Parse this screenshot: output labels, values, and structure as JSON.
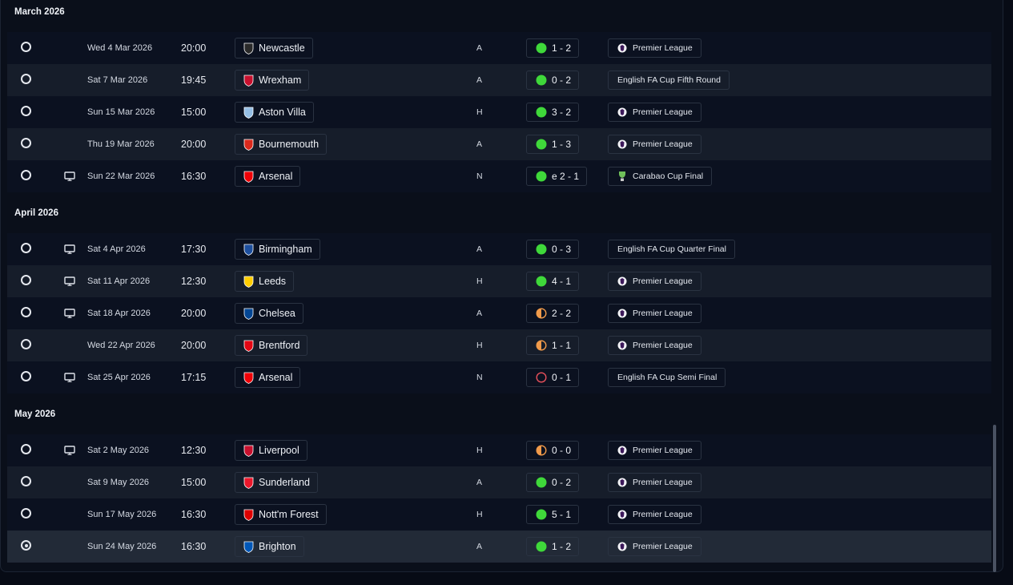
{
  "months": [
    {
      "label": "March 2026",
      "fixtures": [
        {
          "date": "Wed 4 Mar 2026",
          "time": "20:00",
          "opponent": "Newcastle",
          "crest": "newcastle-crest",
          "venue": "A",
          "result": "1 - 2",
          "outcome": "win",
          "competition": "Premier League",
          "comp_logo": "premier-league-logo",
          "tv": false,
          "selected": false
        },
        {
          "date": "Sat 7 Mar 2026",
          "time": "19:45",
          "opponent": "Wrexham",
          "crest": "wrexham-crest",
          "venue": "A",
          "result": "0 - 2",
          "outcome": "win",
          "competition": "English FA Cup Fifth Round",
          "comp_logo": "",
          "tv": false,
          "selected": false
        },
        {
          "date": "Sun 15 Mar 2026",
          "time": "15:00",
          "opponent": "Aston Villa",
          "crest": "aston-villa-crest",
          "venue": "H",
          "result": "3 - 2",
          "outcome": "win",
          "competition": "Premier League",
          "comp_logo": "premier-league-logo",
          "tv": false,
          "selected": false
        },
        {
          "date": "Thu 19 Mar 2026",
          "time": "20:00",
          "opponent": "Bournemouth",
          "crest": "bournemouth-crest",
          "venue": "A",
          "result": "1 - 3",
          "outcome": "win",
          "competition": "Premier League",
          "comp_logo": "premier-league-logo",
          "tv": false,
          "selected": false
        },
        {
          "date": "Sun 22 Mar 2026",
          "time": "16:30",
          "opponent": "Arsenal",
          "crest": "arsenal-crest",
          "venue": "N",
          "result": "e 2 - 1",
          "outcome": "win",
          "competition": "Carabao Cup Final",
          "comp_logo": "carabao-cup-logo",
          "tv": true,
          "selected": false
        }
      ]
    },
    {
      "label": "April 2026",
      "fixtures": [
        {
          "date": "Sat 4 Apr 2026",
          "time": "17:30",
          "opponent": "Birmingham",
          "crest": "birmingham-crest",
          "venue": "A",
          "result": "0 - 3",
          "outcome": "win",
          "competition": "English FA Cup Quarter Final",
          "comp_logo": "",
          "tv": true,
          "selected": false
        },
        {
          "date": "Sat 11 Apr 2026",
          "time": "12:30",
          "opponent": "Leeds",
          "crest": "leeds-crest",
          "venue": "H",
          "result": "4 - 1",
          "outcome": "win",
          "competition": "Premier League",
          "comp_logo": "premier-league-logo",
          "tv": true,
          "selected": false
        },
        {
          "date": "Sat 18 Apr 2026",
          "time": "20:00",
          "opponent": "Chelsea",
          "crest": "chelsea-crest",
          "venue": "A",
          "result": "2 - 2",
          "outcome": "draw",
          "competition": "Premier League",
          "comp_logo": "premier-league-logo",
          "tv": true,
          "selected": false
        },
        {
          "date": "Wed 22 Apr 2026",
          "time": "20:00",
          "opponent": "Brentford",
          "crest": "brentford-crest",
          "venue": "H",
          "result": "1 - 1",
          "outcome": "draw",
          "competition": "Premier League",
          "comp_logo": "premier-league-logo",
          "tv": false,
          "selected": false
        },
        {
          "date": "Sat 25 Apr 2026",
          "time": "17:15",
          "opponent": "Arsenal",
          "crest": "arsenal-crest",
          "venue": "N",
          "result": "0 - 1",
          "outcome": "loss",
          "competition": "English FA Cup Semi Final",
          "comp_logo": "",
          "tv": true,
          "selected": false
        }
      ]
    },
    {
      "label": "May 2026",
      "fixtures": [
        {
          "date": "Sat 2 May 2026",
          "time": "12:30",
          "opponent": "Liverpool",
          "crest": "liverpool-crest",
          "venue": "H",
          "result": "0 - 0",
          "outcome": "draw",
          "competition": "Premier League",
          "comp_logo": "premier-league-logo",
          "tv": true,
          "selected": false
        },
        {
          "date": "Sat 9 May 2026",
          "time": "15:00",
          "opponent": "Sunderland",
          "crest": "sunderland-crest",
          "venue": "A",
          "result": "0 - 2",
          "outcome": "win",
          "competition": "Premier League",
          "comp_logo": "premier-league-logo",
          "tv": false,
          "selected": false
        },
        {
          "date": "Sun 17 May 2026",
          "time": "16:30",
          "opponent": "Nott'm Forest",
          "crest": "nottm-forest-crest",
          "venue": "H",
          "result": "5 - 1",
          "outcome": "win",
          "competition": "Premier League",
          "comp_logo": "premier-league-logo",
          "tv": false,
          "selected": false
        },
        {
          "date": "Sun 24 May 2026",
          "time": "16:30",
          "opponent": "Brighton",
          "crest": "brighton-crest",
          "venue": "A",
          "result": "1 - 2",
          "outcome": "win",
          "competition": "Premier League",
          "comp_logo": "premier-league-logo",
          "tv": false,
          "selected": true
        }
      ]
    }
  ],
  "colors": {
    "win": "#3fd83a",
    "draw": "#f09a4a",
    "loss": "#e8505b",
    "crests": {
      "newcastle-crest": "#2a2a2a",
      "wrexham-crest": "#c8102e",
      "aston-villa-crest": "#95bfe5",
      "bournemouth-crest": "#da291c",
      "arsenal-crest": "#ef0107",
      "birmingham-crest": "#1d4f9e",
      "leeds-crest": "#ffcd00",
      "chelsea-crest": "#034694",
      "brentford-crest": "#e30613",
      "liverpool-crest": "#c8102e",
      "sunderland-crest": "#eb172b",
      "nottm-forest-crest": "#dd0000",
      "brighton-crest": "#0057b8"
    }
  }
}
